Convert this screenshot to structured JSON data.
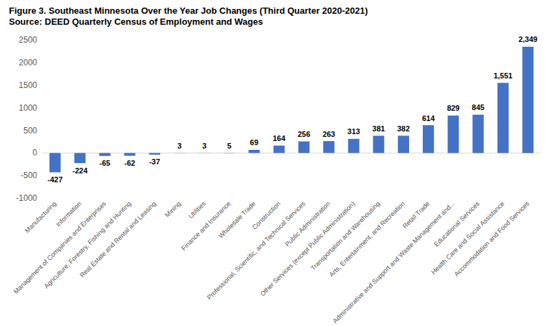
{
  "chart_data": {
    "type": "bar",
    "title": "Figure 3. Southeast Minnesota Over the Year Job Changes (Third Quarter 2020-2021)",
    "subtitle": "Source: DEED Quarterly Census of Employment and Wages",
    "categories": [
      "Manufacturing",
      "Information",
      "Management of Companies and Enterprises",
      "Agriculture, Forestry, Fishing and Hunting",
      "Real Estate and Rental and Leasing",
      "Mining",
      "Utilities",
      "Finance and Insurance",
      "Wholesale Trade",
      "Construction",
      "Professional, Scientific, and Technical Services",
      "Public Administration",
      "Other Services (except Public Administration)",
      "Transportation and Warehousing",
      "Arts, Entertainment, and Recreation",
      "Retail Trade",
      "Administrative and Support and Waste Management and...",
      "Educational Services",
      "Health Care and Social Assistance",
      "Accommodation and Food Services"
    ],
    "values": [
      -427,
      -224,
      -65,
      -62,
      -37,
      3,
      3,
      5,
      69,
      164,
      256,
      263,
      313,
      381,
      382,
      614,
      829,
      845,
      1551,
      2349
    ],
    "value_labels": [
      "-427",
      "-224",
      "-65",
      "-62",
      "-37",
      "3",
      "3",
      "5",
      "69",
      "164",
      "256",
      "263",
      "313",
      "381",
      "382",
      "614",
      "829",
      "845",
      "1,551",
      "2,349"
    ],
    "color": "#4472c4",
    "ylim": [
      -1000,
      2500
    ],
    "yticks": [
      -1000,
      -500,
      0,
      500,
      1000,
      1500,
      2000,
      2500
    ],
    "grid": false,
    "data_labels": true
  }
}
